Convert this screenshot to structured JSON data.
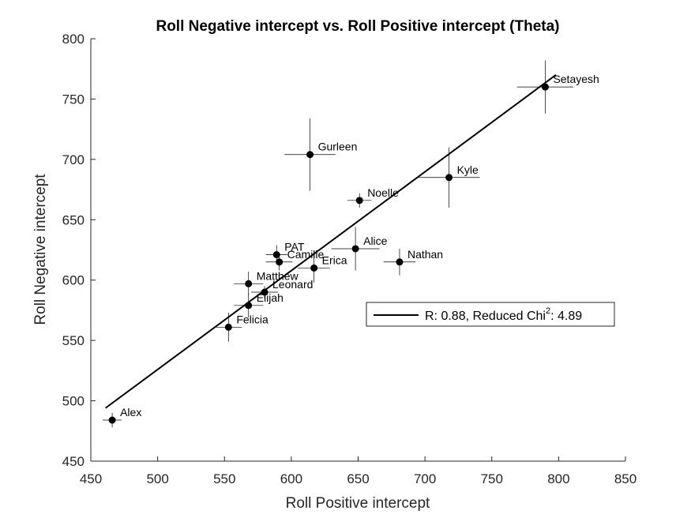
{
  "chart_data": {
    "type": "scatter",
    "title": "Roll Negative intercept vs. Roll Positive intercept (Theta)",
    "xlabel": "Roll Positive intercept",
    "ylabel": "Roll Negative intercept",
    "xlim": [
      450,
      850
    ],
    "ylim": [
      450,
      800
    ],
    "xticks": [
      450,
      500,
      550,
      600,
      650,
      700,
      750,
      800,
      850
    ],
    "yticks": [
      450,
      500,
      550,
      600,
      650,
      700,
      750,
      800
    ],
    "grid": false,
    "points": [
      {
        "label": "Setayesh",
        "x": 790,
        "y": 760,
        "xerr": 21,
        "yerr": 22
      },
      {
        "label": "Gurleen",
        "x": 614,
        "y": 704,
        "xerr": 19,
        "yerr": 30
      },
      {
        "label": "Kyle",
        "x": 718,
        "y": 685,
        "xerr": 23,
        "yerr": 25
      },
      {
        "label": "Noelle",
        "x": 651,
        "y": 666,
        "xerr": 9,
        "yerr": 6
      },
      {
        "label": "Alice",
        "x": 648,
        "y": 626,
        "xerr": 18,
        "yerr": 18
      },
      {
        "label": "PAT",
        "x": 589,
        "y": 621,
        "xerr": 8,
        "yerr": 8
      },
      {
        "label": "Camille",
        "x": 591,
        "y": 615,
        "xerr": 10,
        "yerr": 7
      },
      {
        "label": "Nathan",
        "x": 681,
        "y": 615,
        "xerr": 12,
        "yerr": 11
      },
      {
        "label": "Erica",
        "x": 617,
        "y": 610,
        "xerr": 12,
        "yerr": 12
      },
      {
        "label": "Matthew",
        "x": 568,
        "y": 597,
        "xerr": 11,
        "yerr": 10
      },
      {
        "label": "Leonard",
        "x": 580,
        "y": 590,
        "xerr": 10,
        "yerr": 5
      },
      {
        "label": "Elijah",
        "x": 568,
        "y": 579,
        "xerr": 11,
        "yerr": 10
      },
      {
        "label": "Felicia",
        "x": 553,
        "y": 561,
        "xerr": 10,
        "yerr": 12
      },
      {
        "label": "Alex",
        "x": 466,
        "y": 484,
        "xerr": 7,
        "yerr": 6
      }
    ],
    "fit_line": {
      "x": [
        461,
        798
      ],
      "y": [
        494,
        770
      ]
    },
    "legend": {
      "r_text": "R: 0.88, Reduced Chi",
      "sup": "2",
      "suffix": ": 4.89",
      "location": "right"
    },
    "colors": {
      "points": "#000000",
      "axes": "#262626",
      "errorbars": "#000000"
    }
  }
}
